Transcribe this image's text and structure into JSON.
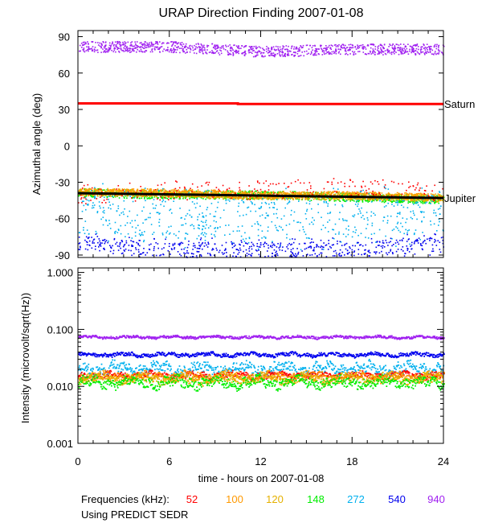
{
  "chart_data": [
    {
      "type": "scatter",
      "title": "URAP Direction Finding  2007-01-08",
      "ylabel": "Azimuthal angle (deg)",
      "xlim": [
        0,
        24
      ],
      "ylim": [
        -92,
        95
      ],
      "y_ticks": [
        -90,
        -60,
        -30,
        0,
        30,
        60,
        90
      ],
      "x_ticks": [
        0,
        6,
        12,
        18,
        24
      ],
      "grid": false,
      "reference_lines": [
        {
          "name": "Saturn",
          "color": "#ff0000",
          "x": [
            0,
            10.5,
            10.5,
            24
          ],
          "y": [
            35,
            35,
            34.5,
            34.5
          ]
        },
        {
          "name": "Jupiter",
          "color": "#000000",
          "x": [
            0,
            24
          ],
          "y": [
            -39,
            -43
          ]
        }
      ],
      "series": [
        {
          "name": "940",
          "color": "#a020f0",
          "band": "dense",
          "center": [
            [
              0,
              82
            ],
            [
              6,
              82
            ],
            [
              12,
              78
            ],
            [
              18,
              80
            ],
            [
              24,
              80
            ]
          ],
          "spread": 9
        },
        {
          "name": "148",
          "color": "#00ee00",
          "band": "dense",
          "center": [
            [
              0,
              -38
            ],
            [
              6,
              -40
            ],
            [
              12,
              -40
            ],
            [
              18,
              -42
            ],
            [
              24,
              -44
            ]
          ],
          "spread": 7
        },
        {
          "name": "120",
          "color": "#e5b000",
          "band": "dense",
          "center": [
            [
              0,
              -37
            ],
            [
              6,
              -39
            ],
            [
              12,
              -41
            ],
            [
              18,
              -41
            ],
            [
              24,
              -43
            ]
          ],
          "spread": 6
        },
        {
          "name": "100",
          "color": "#ff9900",
          "band": "dense",
          "center": [
            [
              0,
              -38
            ],
            [
              6,
              -38
            ],
            [
              12,
              -40
            ],
            [
              18,
              -40
            ],
            [
              24,
              -42
            ]
          ],
          "spread": 6
        },
        {
          "name": "52",
          "color": "#ff0000",
          "band": "sparse",
          "center": [
            [
              0,
              -40
            ],
            [
              6,
              -36
            ],
            [
              12,
              -36
            ],
            [
              18,
              -34
            ],
            [
              24,
              -38
            ]
          ],
          "spread": 16
        },
        {
          "name": "272",
          "color": "#00b0ee",
          "band": "scatter",
          "center": [
            [
              0,
              -55
            ],
            [
              6,
              -60
            ],
            [
              12,
              -60
            ],
            [
              18,
              -60
            ],
            [
              24,
              -55
            ]
          ],
          "spread": 32
        },
        {
          "name": "540",
          "color": "#0000ee",
          "band": "scatter",
          "center": [
            [
              0,
              -80
            ],
            [
              6,
              -85
            ],
            [
              12,
              -85
            ],
            [
              18,
              -85
            ],
            [
              24,
              -80
            ]
          ],
          "spread": 12
        }
      ]
    },
    {
      "type": "line",
      "ylabel": "Intensity (microvolt/sqrt(Hz))",
      "xlabel": "time - hours on 2007-01-08",
      "xlim": [
        0,
        24
      ],
      "ylim": [
        0.001,
        1.2
      ],
      "log_y": true,
      "y_ticks": [
        0.001,
        0.01,
        0.1,
        1.0
      ],
      "y_tick_labels": [
        "0.001",
        "0.010",
        "0.100",
        "1.000"
      ],
      "x_ticks": [
        0,
        6,
        12,
        18,
        24
      ],
      "x_tick_labels": [
        "0",
        "6",
        "12",
        "18",
        "24"
      ],
      "series": [
        {
          "name": "940",
          "color": "#a020f0",
          "level": 0.075,
          "jitter": 0.04
        },
        {
          "name": "540",
          "color": "#0000ee",
          "level": 0.037,
          "jitter": 0.06
        },
        {
          "name": "272",
          "color": "#00b0ee",
          "level": 0.021,
          "jitter": 0.18
        },
        {
          "name": "52",
          "color": "#ff0000",
          "level": 0.016,
          "jitter": 0.1
        },
        {
          "name": "100",
          "color": "#ff9900",
          "level": 0.015,
          "jitter": 0.14
        },
        {
          "name": "120",
          "color": "#e5b000",
          "level": 0.014,
          "jitter": 0.14
        },
        {
          "name": "148",
          "color": "#00ee00",
          "level": 0.012,
          "jitter": 0.16
        }
      ]
    }
  ],
  "footer": {
    "frequencies_label": "Frequencies (kHz):",
    "frequencies": [
      {
        "label": "52",
        "color": "#ff0000"
      },
      {
        "label": "100",
        "color": "#ff9900"
      },
      {
        "label": "120",
        "color": "#e5b000"
      },
      {
        "label": "148",
        "color": "#00ee00"
      },
      {
        "label": "272",
        "color": "#00b0ee"
      },
      {
        "label": "540",
        "color": "#0000ee"
      },
      {
        "label": "940",
        "color": "#a020f0"
      }
    ],
    "source_note": "Using PREDICT SEDR"
  }
}
